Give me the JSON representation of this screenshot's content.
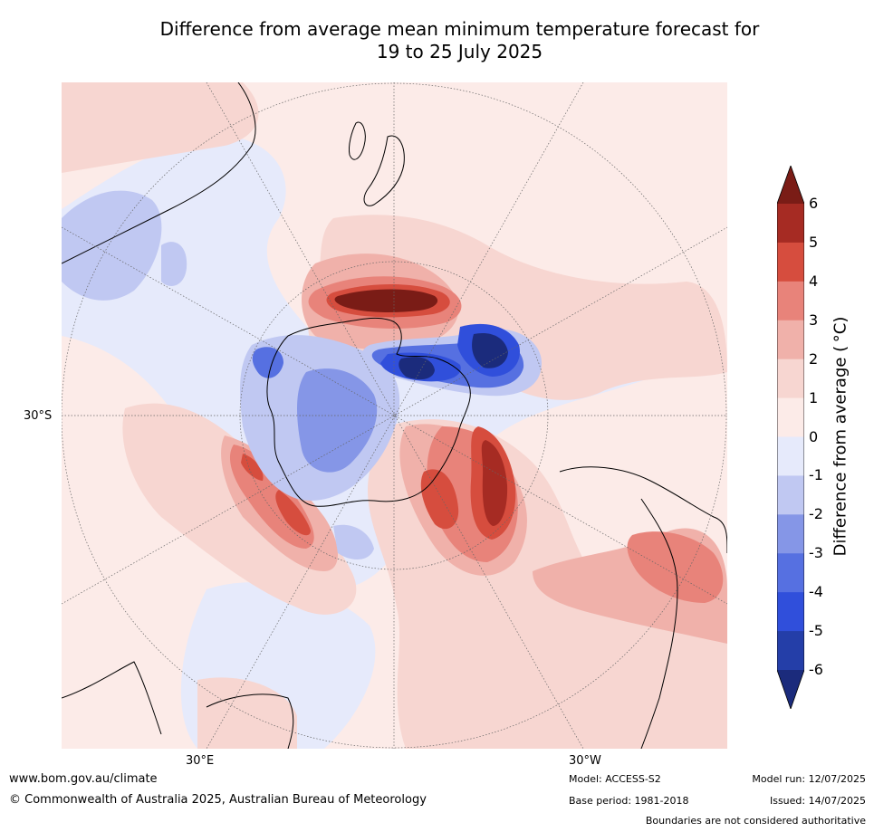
{
  "title_line1": "Difference from average mean minimum temperature forecast for",
  "title_line2": "19 to 25 July 2025",
  "map": {
    "projection": "south-polar stereographic",
    "lat_label": "30°S",
    "lon_label_left": "30°E",
    "lon_label_right": "30°W"
  },
  "colorbar": {
    "label": "Difference from average ( °C)",
    "ticks": [
      "6",
      "5",
      "4",
      "3",
      "2",
      "1",
      "0",
      "-1",
      "-2",
      "-3",
      "-4",
      "-5",
      "-6"
    ],
    "colors": [
      "#7a1c16",
      "#a62b23",
      "#d64d3e",
      "#e8837a",
      "#f0b1aa",
      "#f7d6d1",
      "#fcebe8",
      "#e6eafb",
      "#c0c8f2",
      "#8596e7",
      "#5670e1",
      "#304fdb",
      "#243ea8",
      "#1b2b7c"
    ]
  },
  "footer": {
    "website": "www.bom.gov.au/climate",
    "copyright": "© Commonwealth of Australia 2025, Australian Bureau of Meteorology",
    "model": "Model: ACCESS-S2",
    "base_period": "Base period: 1981-2018",
    "model_run": "Model run: 12/07/2025",
    "issued": "Issued: 14/07/2025",
    "disclaimer": "Boundaries are not considered authoritative"
  }
}
